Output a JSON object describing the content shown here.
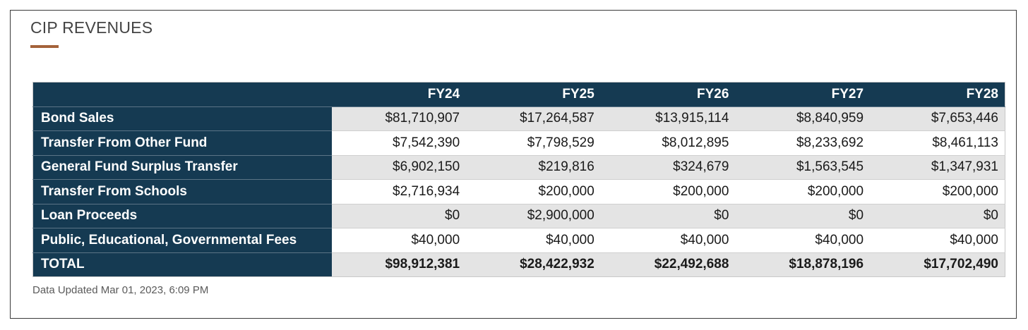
{
  "section": {
    "title": "CIP REVENUES",
    "accent_color": "#a4623a"
  },
  "table": {
    "columns": [
      "FY24",
      "FY25",
      "FY26",
      "FY27",
      "FY28"
    ],
    "rows": [
      {
        "label": "Bond Sales",
        "values": [
          "$81,710,907",
          "$17,264,587",
          "$13,915,114",
          "$8,840,959",
          "$7,653,446"
        ]
      },
      {
        "label": "Transfer From Other Fund",
        "values": [
          "$7,542,390",
          "$7,798,529",
          "$8,012,895",
          "$8,233,692",
          "$8,461,113"
        ]
      },
      {
        "label": "General Fund Surplus Transfer",
        "values": [
          "$6,902,150",
          "$219,816",
          "$324,679",
          "$1,563,545",
          "$1,347,931"
        ]
      },
      {
        "label": "Transfer From Schools",
        "values": [
          "$2,716,934",
          "$200,000",
          "$200,000",
          "$200,000",
          "$200,000"
        ]
      },
      {
        "label": "Loan Proceeds",
        "values": [
          "$0",
          "$2,900,000",
          "$0",
          "$0",
          "$0"
        ]
      },
      {
        "label": "Public, Educational, Governmental Fees",
        "values": [
          "$40,000",
          "$40,000",
          "$40,000",
          "$40,000",
          "$40,000"
        ]
      }
    ],
    "total": {
      "label": "TOTAL",
      "values": [
        "$98,912,381",
        "$28,422,932",
        "$22,492,688",
        "$18,878,196",
        "$17,702,490"
      ]
    },
    "header_color": "#153a52"
  },
  "footer": {
    "updated_text": "Data Updated Mar 01, 2023, 6:09 PM"
  }
}
